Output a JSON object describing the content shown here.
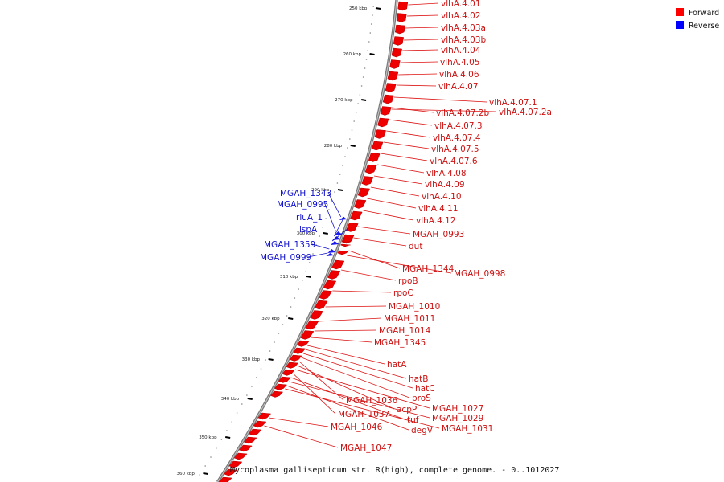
{
  "caption": "Mycoplasma gallisepticum str. R(high), complete genome. - 0..1012027",
  "legend": [
    {
      "label": "Forward",
      "color": "#ff0000"
    },
    {
      "label": "Reverse",
      "color": "#0000ff"
    }
  ],
  "ticks": [
    "250 kbp",
    "260 kbp",
    "270 kbp",
    "280 kbp",
    "290 kbp",
    "300 kbp",
    "310 kbp",
    "320 kbp",
    "330 kbp",
    "340 kbp",
    "350 kbp",
    "360 kbp"
  ],
  "genes": [
    {
      "name": "vlhA.4.01",
      "strand": "forward"
    },
    {
      "name": "vlhA.4.02",
      "strand": "forward"
    },
    {
      "name": "vlhA.4.03a",
      "strand": "forward"
    },
    {
      "name": "vlhA.4.03b",
      "strand": "forward"
    },
    {
      "name": "vlhA.4.04",
      "strand": "forward"
    },
    {
      "name": "vlhA.4.05",
      "strand": "forward"
    },
    {
      "name": "vlhA.4.06",
      "strand": "forward"
    },
    {
      "name": "vlhA.4.07",
      "strand": "forward"
    },
    {
      "name": "vlhA.4.07.1",
      "strand": "forward"
    },
    {
      "name": "vlhA.4.07.2b",
      "strand": "forward"
    },
    {
      "name": "vlhA.4.07.2a",
      "strand": "forward"
    },
    {
      "name": "vlhA.4.07.3",
      "strand": "forward"
    },
    {
      "name": "vlhA.4.07.4",
      "strand": "forward"
    },
    {
      "name": "vlhA.4.07.5",
      "strand": "forward"
    },
    {
      "name": "vlhA.4.07.6",
      "strand": "forward"
    },
    {
      "name": "vlhA.4.08",
      "strand": "forward"
    },
    {
      "name": "vlhA.4.09",
      "strand": "forward"
    },
    {
      "name": "vlhA.4.10",
      "strand": "forward"
    },
    {
      "name": "vlhA.4.11",
      "strand": "forward"
    },
    {
      "name": "vlhA.4.12",
      "strand": "forward"
    },
    {
      "name": "MGAH_0993",
      "strand": "forward"
    },
    {
      "name": "dut",
      "strand": "forward"
    },
    {
      "name": "MGAH_1344",
      "strand": "forward"
    },
    {
      "name": "MGAH_0998",
      "strand": "forward"
    },
    {
      "name": "rpoB",
      "strand": "forward"
    },
    {
      "name": "rpoC",
      "strand": "forward"
    },
    {
      "name": "MGAH_1010",
      "strand": "forward"
    },
    {
      "name": "MGAH_1011",
      "strand": "forward"
    },
    {
      "name": "MGAH_1014",
      "strand": "forward"
    },
    {
      "name": "MGAH_1345",
      "strand": "forward"
    },
    {
      "name": "hatA",
      "strand": "forward"
    },
    {
      "name": "hatB",
      "strand": "forward"
    },
    {
      "name": "hatC",
      "strand": "forward"
    },
    {
      "name": "proS",
      "strand": "forward"
    },
    {
      "name": "MGAH_1036",
      "strand": "forward"
    },
    {
      "name": "acpP",
      "strand": "forward"
    },
    {
      "name": "MGAH_1027",
      "strand": "forward"
    },
    {
      "name": "MGAH_1037",
      "strand": "forward"
    },
    {
      "name": "tuf",
      "strand": "forward"
    },
    {
      "name": "MGAH_1029",
      "strand": "forward"
    },
    {
      "name": "degV",
      "strand": "forward"
    },
    {
      "name": "MGAH_1031",
      "strand": "forward"
    },
    {
      "name": "MGAH_1046",
      "strand": "forward"
    },
    {
      "name": "MGAH_1047",
      "strand": "forward"
    },
    {
      "name": "MGAH_1343",
      "strand": "reverse"
    },
    {
      "name": "MGAH_0995",
      "strand": "reverse"
    },
    {
      "name": "rluA_1",
      "strand": "reverse"
    },
    {
      "name": "lspA",
      "strand": "reverse"
    },
    {
      "name": "MGAH_1359",
      "strand": "reverse"
    },
    {
      "name": "MGAH_0999",
      "strand": "reverse"
    }
  ]
}
